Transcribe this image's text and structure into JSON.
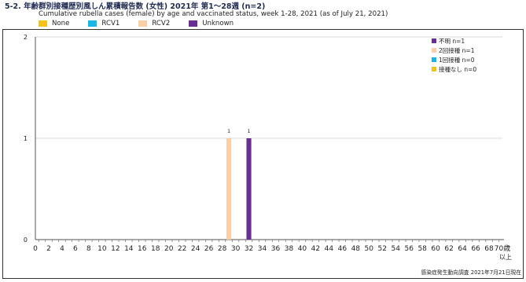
{
  "header": {
    "title": "5-2. 年齢群別接種歴別風しん累積報告数 (女性)  2021年 第1～28週 (n=2)",
    "subtitle": "Cumulative rubella cases (female) by age and vaccinated status, week 1-28, 2021 (as of July 21, 2021)"
  },
  "top_legend": [
    {
      "label": "None",
      "color": "#f4c21b"
    },
    {
      "label": "RCV1",
      "color": "#19b7e6"
    },
    {
      "label": "RCV2",
      "color": "#f8cfa6"
    },
    {
      "label": "Unknown",
      "color": "#6b2d91"
    }
  ],
  "footer": {
    "source": "感染症発生動向調査 2021年7月21日現在"
  },
  "chart_data": {
    "type": "bar",
    "stacked": true,
    "x_tick_labels": [
      "0",
      "2",
      "4",
      "6",
      "8",
      "10",
      "12",
      "14",
      "16",
      "18",
      "20",
      "22",
      "24",
      "26",
      "28",
      "30",
      "32",
      "34",
      "36",
      "38",
      "40",
      "42",
      "44",
      "46",
      "48",
      "50",
      "52",
      "54",
      "56",
      "58",
      "60",
      "62",
      "64",
      "66",
      "68",
      "70"
    ],
    "x_last_label_suffix": "歳",
    "x_last_label_line2": "以上",
    "categories": [
      "0",
      "1",
      "2",
      "3",
      "4",
      "5",
      "6",
      "7",
      "8",
      "9",
      "10",
      "11",
      "12",
      "13",
      "14",
      "15",
      "16",
      "17",
      "18",
      "19",
      "20",
      "21",
      "22",
      "23",
      "24",
      "25",
      "26",
      "27",
      "28",
      "29",
      "30",
      "31",
      "32",
      "33",
      "34",
      "35",
      "36",
      "37",
      "38",
      "39",
      "40",
      "41",
      "42",
      "43",
      "44",
      "45",
      "46",
      "47",
      "48",
      "49",
      "50",
      "51",
      "52",
      "53",
      "54",
      "55",
      "56",
      "57",
      "58",
      "59",
      "60",
      "61",
      "62",
      "63",
      "64",
      "65",
      "66",
      "67",
      "68",
      "69",
      "70"
    ],
    "series": [
      {
        "key": "none",
        "name": "接種なし",
        "color": "#f4c21b",
        "points": []
      },
      {
        "key": "rcv1",
        "name": "1回接種",
        "color": "#19b7e6",
        "points": []
      },
      {
        "key": "rcv2",
        "name": "2回接種",
        "color": "#f8cfa6",
        "points": [
          {
            "category": "29",
            "value": 1
          }
        ]
      },
      {
        "key": "unknown",
        "name": "不明",
        "color": "#6b2d91",
        "points": [
          {
            "category": "32",
            "value": 1
          }
        ]
      }
    ],
    "data_labels": [
      {
        "category": "29",
        "label": "1"
      },
      {
        "category": "32",
        "label": "1"
      }
    ],
    "ylim": [
      0,
      2
    ],
    "y_ticks": [
      "0",
      "1",
      "2"
    ],
    "grid": true,
    "legend": {
      "placement": "top-right",
      "entries": [
        {
          "text": "不明 n=1",
          "color": "#6b2d91"
        },
        {
          "text": "2回接種 n=1",
          "color": "#f8cfa6"
        },
        {
          "text": "1回接種 n=0",
          "color": "#19b7e6"
        },
        {
          "text": "接種なし n=0",
          "color": "#f4c21b"
        }
      ]
    }
  }
}
